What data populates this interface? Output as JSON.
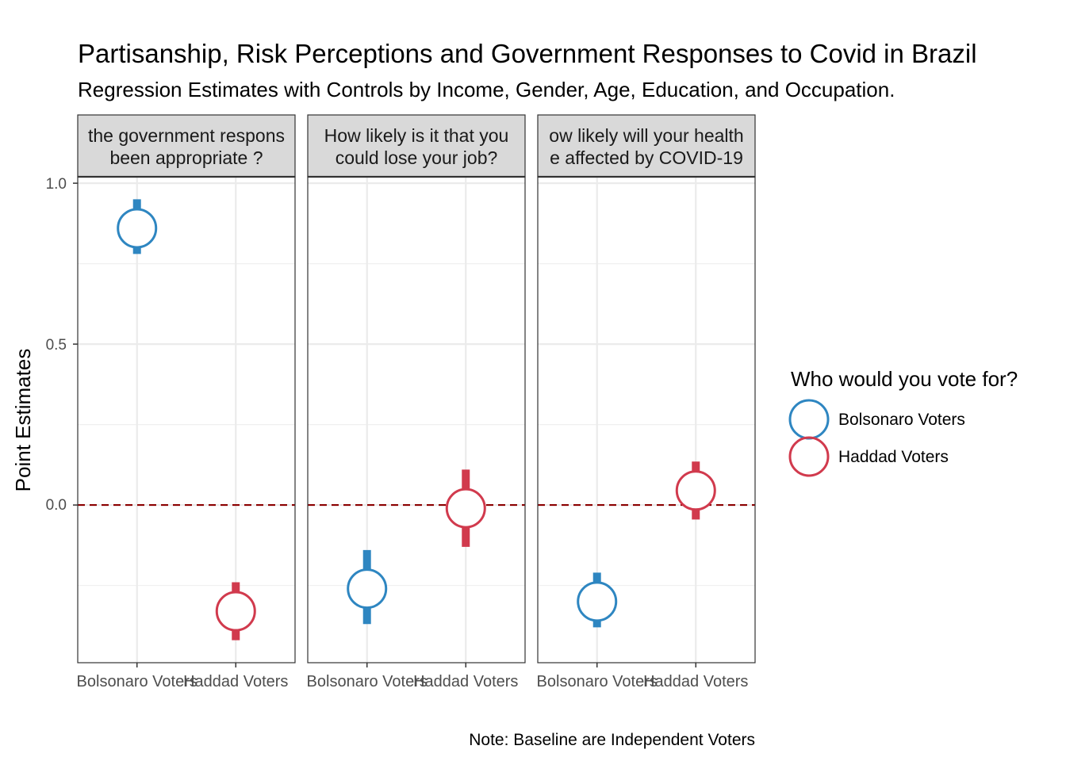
{
  "title": "Partisanship, Risk Perceptions and Government Responses to Covid in Brazil",
  "subtitle": "Regression Estimates with Controls by Income, Gender, Age, Education, and Occupation.",
  "caption": "Note: Baseline are Independent Voters",
  "colors": {
    "bolsonaro": "#2E86C1",
    "haddad": "#D13A4D",
    "zero_line": "#8B0000"
  },
  "chart_data": {
    "type": "scatter",
    "ylabel": "Point Estimates",
    "ylim": [
      -0.49,
      1.02
    ],
    "yticks": [
      1.0,
      0.5,
      0.0
    ],
    "ytick_labels": [
      "1.0",
      "0.5",
      "0.0"
    ],
    "reference_line": 0,
    "grid": true,
    "legend": {
      "title": "Who would you vote for?",
      "placement": "right",
      "entries": [
        "Bolsonaro Voters",
        "Haddad Voters"
      ]
    },
    "categories": [
      "Bolsonaro Voters",
      "Haddad Voters"
    ],
    "panels": [
      {
        "strip": [
          "the government respons",
          "been appropriate ?"
        ],
        "points": [
          {
            "group": "Bolsonaro Voters",
            "y": 0.86,
            "lo": 0.78,
            "hi": 0.95
          },
          {
            "group": "Haddad Voters",
            "y": -0.33,
            "lo": -0.42,
            "hi": -0.24
          }
        ]
      },
      {
        "strip": [
          "How likely is it that you",
          "could lose your job?"
        ],
        "points": [
          {
            "group": "Bolsonaro Voters",
            "y": -0.26,
            "lo": -0.37,
            "hi": -0.14
          },
          {
            "group": "Haddad Voters",
            "y": -0.01,
            "lo": -0.13,
            "hi": 0.11
          }
        ]
      },
      {
        "strip": [
          "ow likely will your health",
          "e affected by COVID-19"
        ],
        "points": [
          {
            "group": "Bolsonaro Voters",
            "y": -0.3,
            "lo": -0.38,
            "hi": -0.21
          },
          {
            "group": "Haddad Voters",
            "y": 0.045,
            "lo": -0.045,
            "hi": 0.135
          }
        ]
      }
    ]
  }
}
